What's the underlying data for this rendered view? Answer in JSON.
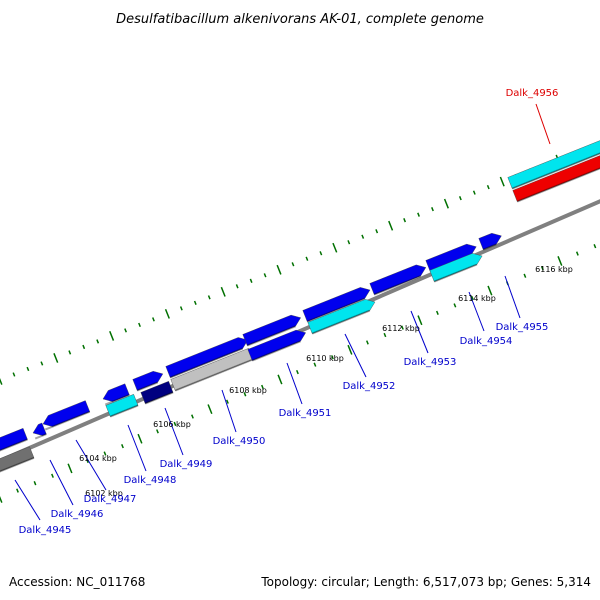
{
  "title": "Desulfatibacillum alkenivorans AK-01, complete genome",
  "footer": {
    "accession": "Accession: NC_011768",
    "summary": "Topology: circular; Length: 6,517,073 bp; Genes: 5,314"
  },
  "colors": {
    "backbone": "#808080",
    "tick": "#007000",
    "gene_blue": "#0000ee",
    "gene_cyan": "#00e5ee",
    "gene_navy": "#000080",
    "gene_silver": "#c0c0c0",
    "gene_gray": "#707070",
    "gene_red": "#ee0000",
    "label_blue": "#0000cc",
    "label_red": "#dd0000"
  },
  "scale_labels": [
    "6102 kbp",
    "6104 kbp",
    "6106 kbp",
    "6108 kbp",
    "6110 kbp",
    "6112 kbp",
    "6114 kbp",
    "6116 kbp"
  ],
  "gene_labels": [
    {
      "text": "Dalk_4945",
      "color": "label_blue"
    },
    {
      "text": "Dalk_4946",
      "color": "label_blue"
    },
    {
      "text": "Dalk_4947",
      "color": "label_blue"
    },
    {
      "text": "Dalk_4948",
      "color": "label_blue"
    },
    {
      "text": "Dalk_4949",
      "color": "label_blue"
    },
    {
      "text": "Dalk_4950",
      "color": "label_blue"
    },
    {
      "text": "Dalk_4951",
      "color": "label_blue"
    },
    {
      "text": "Dalk_4952",
      "color": "label_blue"
    },
    {
      "text": "Dalk_4953",
      "color": "label_blue"
    },
    {
      "text": "Dalk_4954",
      "color": "label_blue"
    },
    {
      "text": "Dalk_4955",
      "color": "label_blue"
    },
    {
      "text": "Dalk_4956",
      "color": "label_red"
    }
  ],
  "features": [
    {
      "track": "reverse_outer",
      "color": "gene_blue",
      "arrow": "left"
    },
    {
      "track": "reverse_outer",
      "color": "gene_blue",
      "arrow": "left"
    },
    {
      "track": "reverse_outer",
      "color": "gene_blue",
      "arrow": "left"
    },
    {
      "track": "reverse_outer",
      "color": "gene_blue",
      "arrow": "left"
    },
    {
      "track": "reverse_outer",
      "color": "gene_blue",
      "arrow": "right"
    },
    {
      "track": "reverse_outer",
      "color": "gene_blue",
      "arrow": "right"
    },
    {
      "track": "reverse_outer",
      "color": "gene_blue",
      "arrow": "right"
    },
    {
      "track": "reverse_outer",
      "color": "gene_blue",
      "arrow": "right"
    },
    {
      "track": "reverse_outer",
      "color": "gene_blue",
      "arrow": "right"
    },
    {
      "track": "reverse_outer",
      "color": "gene_blue",
      "arrow": "right"
    },
    {
      "track": "reverse_outer",
      "color": "gene_blue",
      "arrow": "right"
    },
    {
      "track": "reverse_outer",
      "color": "gene_cyan",
      "arrow": "right"
    },
    {
      "track": "reverse_inner",
      "color": "gene_gray",
      "arrow": "none"
    },
    {
      "track": "reverse_inner",
      "color": "gene_cyan",
      "arrow": "none"
    },
    {
      "track": "reverse_inner",
      "color": "gene_navy",
      "arrow": "none"
    },
    {
      "track": "reverse_inner",
      "color": "gene_silver",
      "arrow": "none"
    },
    {
      "track": "reverse_inner",
      "color": "gene_blue",
      "arrow": "right"
    },
    {
      "track": "reverse_inner",
      "color": "gene_cyan",
      "arrow": "right"
    },
    {
      "track": "reverse_inner",
      "color": "gene_cyan",
      "arrow": "right"
    },
    {
      "track": "reverse_inner",
      "color": "gene_red",
      "arrow": "right"
    }
  ]
}
